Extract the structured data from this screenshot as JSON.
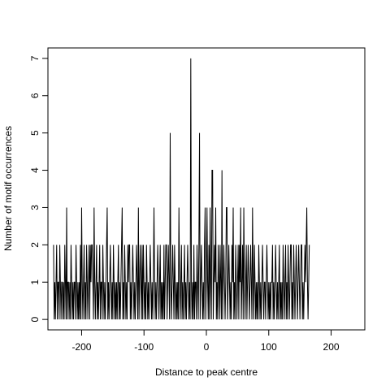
{
  "chart_data": {
    "type": "line",
    "title": "",
    "xlabel": "Distance to peak centre",
    "ylabel": "Number of motif occurrences",
    "xlim": [
      -254,
      254
    ],
    "ylim": [
      -0.28,
      7.28
    ],
    "xticks": [
      -200,
      -100,
      0,
      100,
      200
    ],
    "xtick_labels": [
      "-200",
      "-100",
      "0",
      "100",
      "200"
    ],
    "yticks": [
      0,
      1,
      2,
      3,
      4,
      5,
      6,
      7
    ],
    "ytick_labels": [
      "0",
      "1",
      "2",
      "3",
      "4",
      "5",
      "6",
      "7"
    ],
    "grid": false,
    "x_start": -245,
    "x_step": 1,
    "y": [
      2,
      0,
      1,
      0,
      1,
      2,
      0,
      1,
      1,
      0,
      2,
      1,
      0,
      1,
      1,
      0,
      1,
      0,
      2,
      1,
      0,
      3,
      0,
      1,
      1,
      0,
      1,
      0,
      2,
      1,
      0,
      1,
      0,
      1,
      1,
      0,
      2,
      1,
      0,
      1,
      0,
      1,
      0,
      2,
      0,
      3,
      1,
      0,
      1,
      2,
      0,
      1,
      0,
      2,
      1,
      0,
      1,
      2,
      0,
      2,
      1,
      2,
      2,
      1,
      0,
      3,
      1,
      0,
      1,
      2,
      0,
      1,
      0,
      1,
      2,
      0,
      1,
      1,
      0,
      2,
      1,
      0,
      1,
      0,
      1,
      2,
      3,
      0,
      1,
      0,
      1,
      2,
      1,
      0,
      1,
      0,
      2,
      1,
      0,
      1,
      0,
      1,
      0,
      1,
      2,
      0,
      1,
      0,
      1,
      2,
      3,
      0,
      1,
      0,
      2,
      1,
      0,
      1,
      0,
      2,
      1,
      2,
      2,
      0,
      1,
      0,
      1,
      2,
      1,
      0,
      1,
      0,
      1,
      2,
      1,
      0,
      3,
      0,
      1,
      2,
      1,
      0,
      2,
      0,
      2,
      1,
      0,
      1,
      0,
      2,
      1,
      0,
      1,
      0,
      1,
      2,
      1,
      0,
      1,
      0,
      1,
      3,
      1,
      0,
      1,
      0,
      1,
      2,
      1,
      0,
      1,
      2,
      0,
      1,
      0,
      1,
      0,
      2,
      0,
      1,
      2,
      2,
      0,
      1,
      2,
      1,
      0,
      5,
      1,
      0,
      1,
      2,
      1,
      0,
      2,
      1,
      0,
      1,
      0,
      1,
      0,
      3,
      1,
      0,
      1,
      2,
      0,
      1,
      0,
      1,
      2,
      0,
      1,
      0,
      1,
      2,
      1,
      0,
      1,
      0,
      7,
      1,
      0,
      1,
      0,
      2,
      0,
      1,
      1,
      0,
      2,
      1,
      0,
      2,
      5,
      0,
      1,
      2,
      1,
      0,
      1,
      0,
      2,
      3,
      0,
      1,
      3,
      1,
      0,
      2,
      0,
      3,
      1,
      0,
      4,
      4,
      0,
      1,
      2,
      1,
      3,
      0,
      1,
      0,
      2,
      1,
      0,
      2,
      1,
      0,
      4,
      0,
      1,
      2,
      1,
      0,
      1,
      3,
      3,
      0,
      1,
      2,
      1,
      0,
      1,
      0,
      2,
      1,
      3,
      0,
      1,
      0,
      2,
      1,
      0,
      1,
      2,
      0,
      2,
      1,
      3,
      0,
      1,
      2,
      0,
      3,
      1,
      0,
      1,
      2,
      0,
      1,
      2,
      1,
      0,
      1,
      2,
      1,
      0,
      3,
      1,
      0,
      2,
      1,
      0,
      1,
      0,
      1,
      0,
      2,
      1,
      0,
      1,
      0,
      1,
      2,
      1,
      0,
      1,
      1,
      0,
      1,
      2,
      1,
      0,
      1,
      0,
      1,
      0,
      1,
      1,
      2,
      0,
      1,
      0,
      1,
      2,
      1,
      0,
      1,
      0,
      1,
      2,
      0,
      1,
      0,
      1,
      0,
      2,
      1,
      0,
      1,
      2,
      0,
      1,
      0,
      2,
      1,
      0,
      1,
      2,
      2,
      0,
      1,
      0,
      2,
      1,
      0,
      1,
      2,
      1,
      0,
      1,
      2,
      1,
      0,
      1,
      2,
      2,
      0,
      1,
      0,
      1,
      2,
      1,
      2,
      3,
      1,
      0,
      1,
      2
    ]
  }
}
